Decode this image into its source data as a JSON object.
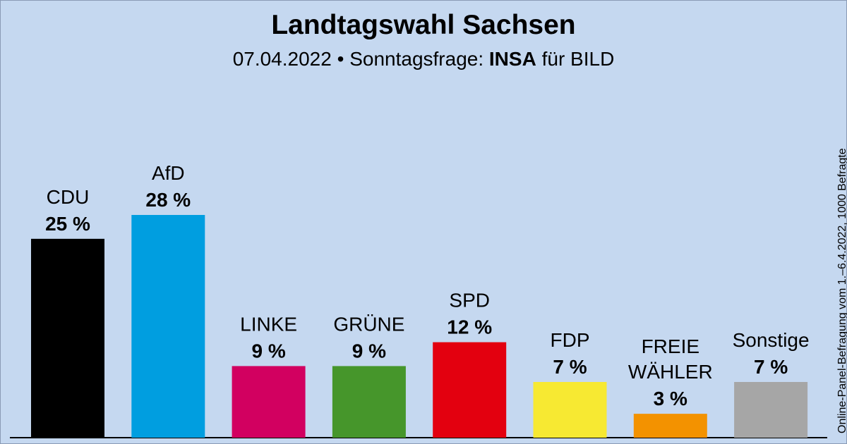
{
  "title": "Landtagswahl Sachsen",
  "subtitle": {
    "date": "07.04.2022",
    "separator": "•",
    "label": "Sonntagsfrage:",
    "institute": "INSA",
    "client": "für BILD"
  },
  "note": "Online-Panel-Befragung vom 1.–6.4.2022, 1000 Befragte",
  "chart_data": {
    "type": "bar",
    "title": "Landtagswahl Sachsen",
    "xlabel": "",
    "ylabel": "",
    "ylim": [
      0,
      28
    ],
    "value_suffix": " %",
    "categories": [
      [
        "CDU"
      ],
      [
        "AfD"
      ],
      [
        "LINKE"
      ],
      [
        "GRÜNE"
      ],
      [
        "SPD"
      ],
      [
        "FDP"
      ],
      [
        "FREIE",
        "WÄHLER"
      ],
      [
        "Sonstige"
      ]
    ],
    "values": [
      25,
      28,
      9,
      9,
      12,
      7,
      3,
      7
    ],
    "colors": [
      "#000000",
      "#009ee0",
      "#d20060",
      "#46962b",
      "#e3000f",
      "#f7e932",
      "#f39200",
      "#a6a6a6"
    ]
  }
}
